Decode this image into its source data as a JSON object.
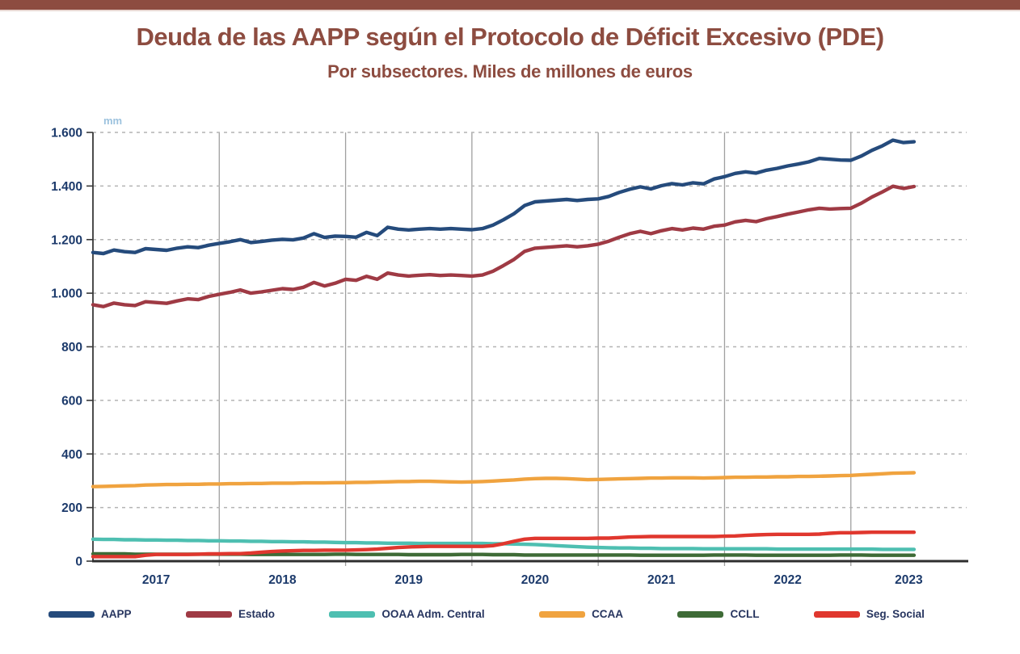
{
  "header": {
    "title": "Deuda de las AAPP según el Protocolo de Déficit Excesivo (PDE)",
    "subtitle": "Por subsectores. Miles de millones de euros"
  },
  "colors": {
    "accent_maroon": "#8d4c40",
    "axis_text": "#1c3a6b",
    "unit_label_blue": "#9cc2de"
  },
  "chart_data": {
    "type": "line",
    "title": "Deuda de las AAPP según el Protocolo de Déficit Excesivo (PDE)",
    "subtitle": "Por subsectores. Miles de millones de euros",
    "unit_label": "mm",
    "frequency": "monthly",
    "x_start": "2017-01",
    "x_end": "2023-07",
    "x_axis": {
      "year_labels": [
        "2017",
        "2018",
        "2019",
        "2020",
        "2021",
        "2022",
        "2023"
      ],
      "domain_months": [
        0,
        83
      ],
      "year_gridline_months": [
        12,
        24,
        36,
        48,
        60,
        72
      ]
    },
    "y_axis": {
      "min": 0,
      "max": 1600,
      "tick_step": 200,
      "tick_values": [
        0,
        200,
        400,
        600,
        800,
        1000,
        1200,
        1400,
        1600
      ],
      "tick_labels": [
        "0",
        "200",
        "400",
        "600",
        "800",
        "1.000",
        "1.200",
        "1.400",
        "1.600"
      ]
    },
    "grid": {
      "horizontal": "dashed",
      "vertical": "solid"
    },
    "legend_position": "bottom",
    "series": [
      {
        "name": "AAPP",
        "color": "#254b7c",
        "values": [
          1152,
          1148,
          1161,
          1155,
          1152,
          1166,
          1163,
          1160,
          1168,
          1173,
          1170,
          1179,
          1186,
          1192,
          1200,
          1189,
          1193,
          1198,
          1201,
          1199,
          1206,
          1222,
          1208,
          1213,
          1212,
          1209,
          1227,
          1215,
          1246,
          1239,
          1236,
          1239,
          1241,
          1239,
          1241,
          1239,
          1237,
          1241,
          1254,
          1274,
          1297,
          1327,
          1341,
          1344,
          1347,
          1350,
          1346,
          1350,
          1352,
          1361,
          1376,
          1388,
          1397,
          1389,
          1401,
          1409,
          1404,
          1412,
          1408,
          1426,
          1435,
          1447,
          1453,
          1448,
          1459,
          1466,
          1475,
          1482,
          1490,
          1503,
          1500,
          1497,
          1496,
          1512,
          1533,
          1550,
          1571,
          1562,
          1565
        ]
      },
      {
        "name": "Estado",
        "color": "#9f3a44",
        "values": [
          957,
          950,
          963,
          957,
          954,
          968,
          965,
          962,
          971,
          979,
          976,
          988,
          996,
          1003,
          1012,
          1000,
          1005,
          1011,
          1017,
          1014,
          1022,
          1040,
          1027,
          1037,
          1052,
          1048,
          1063,
          1052,
          1075,
          1068,
          1064,
          1067,
          1069,
          1066,
          1068,
          1066,
          1064,
          1068,
          1082,
          1103,
          1126,
          1156,
          1168,
          1171,
          1174,
          1177,
          1173,
          1177,
          1183,
          1194,
          1209,
          1222,
          1231,
          1222,
          1233,
          1241,
          1236,
          1243,
          1239,
          1250,
          1254,
          1266,
          1272,
          1267,
          1278,
          1286,
          1295,
          1303,
          1311,
          1317,
          1314,
          1316,
          1317,
          1336,
          1359,
          1378,
          1399,
          1391,
          1398
        ]
      },
      {
        "name": "OOAA Adm. Central",
        "color": "#4ebfb1",
        "values": [
          82,
          81,
          81,
          80,
          80,
          79,
          79,
          78,
          78,
          77,
          77,
          76,
          76,
          75,
          75,
          74,
          74,
          73,
          73,
          72,
          72,
          71,
          71,
          70,
          69,
          69,
          68,
          68,
          67,
          67,
          67,
          66,
          66,
          66,
          66,
          66,
          66,
          66,
          65,
          65,
          64,
          63,
          62,
          60,
          58,
          56,
          54,
          52,
          51,
          50,
          49,
          49,
          48,
          48,
          47,
          47,
          47,
          47,
          46,
          46,
          46,
          46,
          46,
          46,
          46,
          45,
          45,
          45,
          45,
          45,
          45,
          45,
          45,
          45,
          45,
          44,
          44,
          44,
          44
        ]
      },
      {
        "name": "CCAA",
        "color": "#f0a33f",
        "values": [
          278,
          279,
          280,
          281,
          282,
          284,
          285,
          286,
          286,
          287,
          287,
          288,
          288,
          289,
          289,
          290,
          290,
          291,
          291,
          291,
          292,
          292,
          292,
          293,
          293,
          294,
          294,
          295,
          296,
          297,
          297,
          298,
          298,
          297,
          296,
          295,
          296,
          297,
          299,
          301,
          303,
          306,
          308,
          309,
          309,
          308,
          306,
          304,
          305,
          306,
          307,
          308,
          309,
          310,
          310,
          311,
          311,
          311,
          310,
          311,
          312,
          313,
          313,
          314,
          314,
          315,
          315,
          316,
          316,
          317,
          318,
          319,
          320,
          322,
          324,
          326,
          328,
          329,
          330
        ]
      },
      {
        "name": "CCLL",
        "color": "#3e6b36",
        "values": [
          27,
          27,
          27,
          27,
          26,
          26,
          26,
          26,
          26,
          26,
          26,
          26,
          26,
          26,
          26,
          25,
          25,
          25,
          25,
          25,
          25,
          25,
          25,
          26,
          26,
          25,
          25,
          25,
          25,
          25,
          24,
          24,
          24,
          24,
          24,
          25,
          25,
          25,
          24,
          24,
          24,
          23,
          23,
          23,
          23,
          23,
          23,
          23,
          23,
          23,
          23,
          23,
          22,
          22,
          22,
          22,
          22,
          22,
          22,
          23,
          23,
          23,
          23,
          22,
          22,
          22,
          22,
          22,
          22,
          22,
          22,
          23,
          23,
          23,
          22,
          22,
          22,
          22,
          22
        ]
      },
      {
        "name": "Seg. Social",
        "color": "#e0372e",
        "values": [
          17,
          17,
          17,
          17,
          17,
          22,
          25,
          25,
          25,
          25,
          26,
          27,
          27,
          28,
          28,
          30,
          33,
          36,
          38,
          39,
          40,
          40,
          41,
          41,
          41,
          42,
          43,
          45,
          48,
          51,
          53,
          54,
          55,
          55,
          55,
          55,
          55,
          55,
          58,
          65,
          74,
          82,
          85,
          85,
          85,
          85,
          85,
          85,
          86,
          86,
          88,
          90,
          91,
          92,
          92,
          92,
          92,
          92,
          92,
          92,
          93,
          94,
          96,
          98,
          99,
          100,
          100,
          100,
          100,
          101,
          104,
          106,
          106,
          107,
          108,
          108,
          108,
          108,
          108
        ]
      }
    ]
  }
}
